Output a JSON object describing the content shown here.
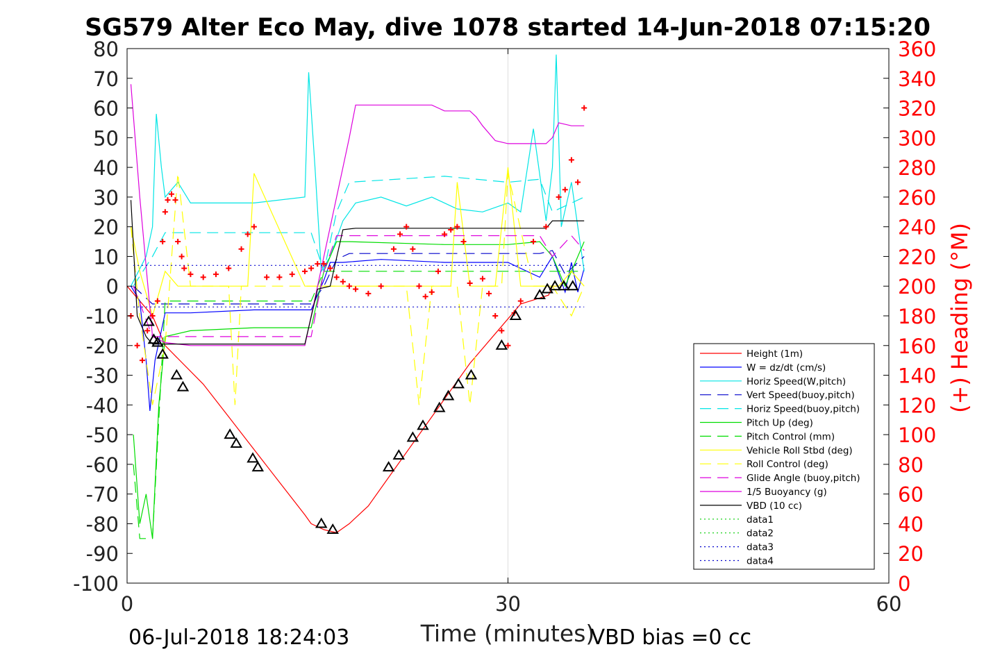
{
  "chart_data": {
    "type": "line",
    "title": "SG579 Alter Eco May, dive 1078 started 14-Jun-2018 07:15:20",
    "xlabel": "Time (minutes)",
    "ylabel_right": "(+) Heading (°M)",
    "footer_left": "06-Jul-2018 18:24:03",
    "footer_right": "VBD bias =0 cc",
    "xlim": [
      0,
      60
    ],
    "ylim": [
      -100,
      80
    ],
    "ylim_right": [
      0,
      360
    ],
    "x_ticks": [
      "0",
      "30",
      "60"
    ],
    "y_ticks": [
      "-100",
      "-90",
      "-80",
      "-70",
      "-60",
      "-50",
      "-40",
      "-30",
      "-20",
      "-10",
      "0",
      "10",
      "20",
      "30",
      "40",
      "50",
      "60",
      "70",
      "80"
    ],
    "y_right_ticks": [
      "0",
      "20",
      "40",
      "60",
      "80",
      "100",
      "120",
      "140",
      "160",
      "180",
      "200",
      "220",
      "240",
      "260",
      "280",
      "300",
      "320",
      "340",
      "360"
    ],
    "grid_x_at": [
      30
    ],
    "legend_position": "lower-right",
    "series": [
      {
        "name": "Height (1m)",
        "color": "#ff0000",
        "style": "solid",
        "x": [
          0,
          2,
          3,
          6,
          8,
          10,
          12,
          14,
          14.5,
          15.5,
          16.5,
          17.5,
          19,
          21,
          23,
          25,
          27,
          29,
          31,
          32.5,
          33.2,
          33.5,
          34
        ],
        "y": [
          0,
          -10,
          -20,
          -33,
          -44,
          -55,
          -66,
          -77,
          -80,
          -82,
          -83,
          -80,
          -74,
          -62,
          -50,
          -38,
          -26,
          -16,
          -6,
          -4,
          -3,
          0,
          0
        ]
      },
      {
        "name": "W = dz/dt (cm/s)",
        "color": "#0000ff",
        "style": "solid",
        "x": [
          0.3,
          1,
          1.5,
          1.8,
          2.2,
          3,
          5,
          10,
          14.5,
          15.5,
          16,
          17,
          20,
          25,
          30,
          32.5,
          33.5,
          34.5,
          35,
          35.5,
          36
        ],
        "y": [
          0,
          -5,
          -25,
          -42,
          -25,
          -9,
          -9,
          -8,
          -8,
          2,
          8,
          8,
          9,
          8,
          8,
          3,
          10,
          -2,
          8,
          -2,
          6
        ]
      },
      {
        "name": "Horiz Speed(W,pitch)",
        "color": "#00e5e5",
        "style": "solid",
        "x": [
          0.3,
          1.5,
          2,
          2.3,
          2.7,
          3,
          4,
          5,
          10,
          14,
          14.3,
          14.8,
          15.3,
          16,
          17,
          18,
          20,
          22,
          24,
          26,
          28,
          30,
          31,
          32,
          33,
          33.5,
          33.8,
          34.2,
          35,
          36
        ],
        "y": [
          0,
          10,
          20,
          58,
          40,
          30,
          35,
          28,
          28,
          30,
          72,
          40,
          5,
          10,
          22,
          28,
          30,
          27,
          30,
          26,
          25,
          28,
          25,
          53,
          22,
          40,
          78,
          20,
          35,
          5
        ]
      },
      {
        "name": "Vert Speed(buoy,pitch)",
        "color": "#0000cc",
        "style": "dashed",
        "x": [
          0.5,
          2,
          3,
          5,
          14.5,
          15.5,
          16.5,
          17.5,
          30,
          32.5,
          33.5,
          34.5,
          36
        ],
        "y": [
          0,
          -6,
          -6,
          -6,
          -6,
          0,
          9,
          11,
          11,
          11,
          12,
          4,
          10
        ]
      },
      {
        "name": "Horiz Speed(buoy,pitch)",
        "color": "#00e5e5",
        "style": "dashed",
        "x": [
          0.5,
          2,
          3,
          5,
          14.5,
          15.5,
          16.5,
          17.5,
          25,
          30,
          32.5,
          33.5,
          36
        ],
        "y": [
          0,
          10,
          18,
          18,
          18,
          5,
          25,
          35,
          37,
          35,
          36,
          25,
          30
        ]
      },
      {
        "name": "Pitch Up (deg)",
        "color": "#00dd00",
        "style": "solid",
        "x": [
          0.5,
          1,
          1.5,
          2,
          2.5,
          3,
          5,
          10,
          14.5,
          15.5,
          16.5,
          17.5,
          25,
          30,
          32.5,
          33.5,
          34.5,
          36
        ],
        "y": [
          -50,
          -80,
          -70,
          -85,
          -40,
          -17,
          -15,
          -14,
          -14,
          5,
          15,
          15,
          14,
          14,
          15,
          10,
          0,
          15
        ]
      },
      {
        "name": "Pitch Control (mm)",
        "color": "#00dd00",
        "style": "dashed",
        "x": [
          0.5,
          1,
          2,
          3,
          5,
          14.5,
          15.5,
          16.5,
          30,
          33,
          34,
          36
        ],
        "y": [
          -60,
          -85,
          -85,
          -5,
          -5,
          -5,
          5,
          5,
          5,
          5,
          5,
          5
        ]
      },
      {
        "name": "Vehicle Roll Stbd (deg)",
        "color": "#ffff00",
        "style": "solid",
        "x": [
          0.3,
          1,
          2,
          3,
          4,
          5,
          8,
          9.5,
          10,
          14,
          15,
          16,
          18,
          20,
          22,
          24,
          25.5,
          26,
          27,
          29,
          30,
          31,
          32,
          33,
          34,
          35,
          36
        ],
        "y": [
          20,
          5,
          -10,
          5,
          0,
          0,
          0,
          0,
          38,
          0,
          0,
          0,
          0,
          0,
          0,
          0,
          0,
          35,
          0,
          0,
          40,
          0,
          0,
          0,
          0,
          5,
          0
        ]
      },
      {
        "name": "Roll Control (deg)",
        "color": "#ffff00",
        "style": "dashed",
        "x": [
          0.3,
          1,
          2,
          3,
          4,
          5,
          8,
          8.5,
          9,
          10,
          14,
          15,
          16,
          18,
          22,
          23,
          24,
          26,
          27,
          28,
          29.5,
          30,
          32,
          33.5,
          35,
          36
        ],
        "y": [
          20,
          -10,
          -40,
          -20,
          38,
          0,
          0,
          -40,
          0,
          0,
          0,
          0,
          0,
          0,
          0,
          -40,
          0,
          0,
          -40,
          0,
          0,
          38,
          0,
          0,
          -10,
          0
        ]
      },
      {
        "name": "Glide Angle (buoy,pitch)",
        "color": "#dd00dd",
        "style": "dashed",
        "x": [
          0.5,
          2,
          3,
          5,
          14.5,
          15.5,
          16.5,
          17.5,
          25,
          30,
          32.5,
          33.5,
          35,
          36
        ],
        "y": [
          0,
          -17,
          -17,
          -17,
          -17,
          5,
          17,
          17,
          17,
          17,
          17,
          10,
          17,
          12
        ]
      },
      {
        "name": "1/5 Buoyancy (g)",
        "color": "#dd00dd",
        "style": "solid",
        "x": [
          0.3,
          1,
          2,
          3,
          5,
          14,
          15,
          17.5,
          18,
          22,
          24,
          25,
          27,
          27.5,
          28,
          29,
          30,
          33,
          33.5,
          34,
          35,
          36
        ],
        "y": [
          68,
          30,
          -17,
          -19,
          -20,
          -20,
          0,
          50,
          61,
          61,
          61,
          59,
          59,
          57,
          54,
          49,
          48,
          48,
          50,
          55,
          54,
          54
        ]
      },
      {
        "name": "VBD (10 cc)",
        "color": "#000000",
        "style": "solid",
        "x": [
          0.3,
          0.8,
          1.5,
          2,
          5,
          14,
          15,
          16,
          17,
          18,
          20,
          30,
          33,
          33.5,
          36
        ],
        "y": [
          29,
          -10,
          -17,
          -19.5,
          -19.5,
          -19.5,
          -1,
          0,
          19,
          19.5,
          19.5,
          19.5,
          19.5,
          22,
          22
        ]
      },
      {
        "name": "data1",
        "color": "#00cc00",
        "style": "dotted",
        "x": [],
        "y": []
      },
      {
        "name": "data2",
        "color": "#00cc00",
        "style": "dotted",
        "x": [],
        "y": []
      },
      {
        "name": "data3",
        "color": "#0000cc",
        "style": "dotted",
        "x": [
          0.5,
          36
        ],
        "y": [
          7,
          7
        ]
      },
      {
        "name": "data4",
        "color": "#0000cc",
        "style": "dotted",
        "x": [
          0.5,
          36
        ],
        "y": [
          -7,
          -7
        ]
      }
    ],
    "heading_markers": {
      "color": "#ff0000",
      "axis": "right",
      "x": [
        0.3,
        0.8,
        1.2,
        1.6,
        2.0,
        2.4,
        2.8,
        3.0,
        3.2,
        3.5,
        3.8,
        4.0,
        4.3,
        4.5,
        5,
        6,
        7,
        8,
        9,
        9.5,
        10,
        11,
        12,
        13,
        14,
        14.5,
        15,
        15.5,
        16,
        16.5,
        17,
        17.5,
        18,
        19,
        20,
        21,
        21.5,
        22,
        22.5,
        23,
        23.5,
        24,
        24.5,
        25,
        25.5,
        26,
        26.5,
        27,
        28,
        28.5,
        29,
        29.5,
        30,
        30.5,
        31,
        32,
        33,
        34,
        34.5,
        35,
        35.5,
        36
      ],
      "y": [
        180,
        160,
        150,
        170,
        180,
        190,
        230,
        250,
        258,
        262,
        258,
        230,
        220,
        212,
        208,
        206,
        208,
        212,
        225,
        235,
        240,
        206,
        206,
        208,
        210,
        212,
        215,
        215,
        212,
        206,
        203,
        200,
        198,
        195,
        200,
        225,
        235,
        240,
        225,
        200,
        193,
        196,
        210,
        235,
        238,
        240,
        230,
        202,
        205,
        195,
        180,
        170,
        160,
        182,
        190,
        230,
        240,
        260,
        265,
        285,
        270,
        320
      ]
    },
    "height_markers": {
      "color": "#000000",
      "x": [
        1.7,
        2.1,
        2.4,
        2.8,
        3.9,
        4.4,
        8.1,
        8.6,
        9.9,
        10.3,
        15.3,
        16.2,
        20.6,
        21.4,
        22.5,
        23.3,
        24.6,
        25.3,
        26.1,
        27.1,
        29.5,
        30.6,
        32.5,
        33.1,
        33.7,
        34.4,
        35.1
      ],
      "y": [
        -12,
        -18,
        -19,
        -23,
        -30,
        -34,
        -50,
        -53,
        -58,
        -61,
        -80,
        -82,
        -61,
        -57,
        -51,
        -47,
        -41,
        -37,
        -33,
        -30,
        -20,
        -10,
        -3,
        -1,
        0,
        0,
        0
      ]
    }
  }
}
